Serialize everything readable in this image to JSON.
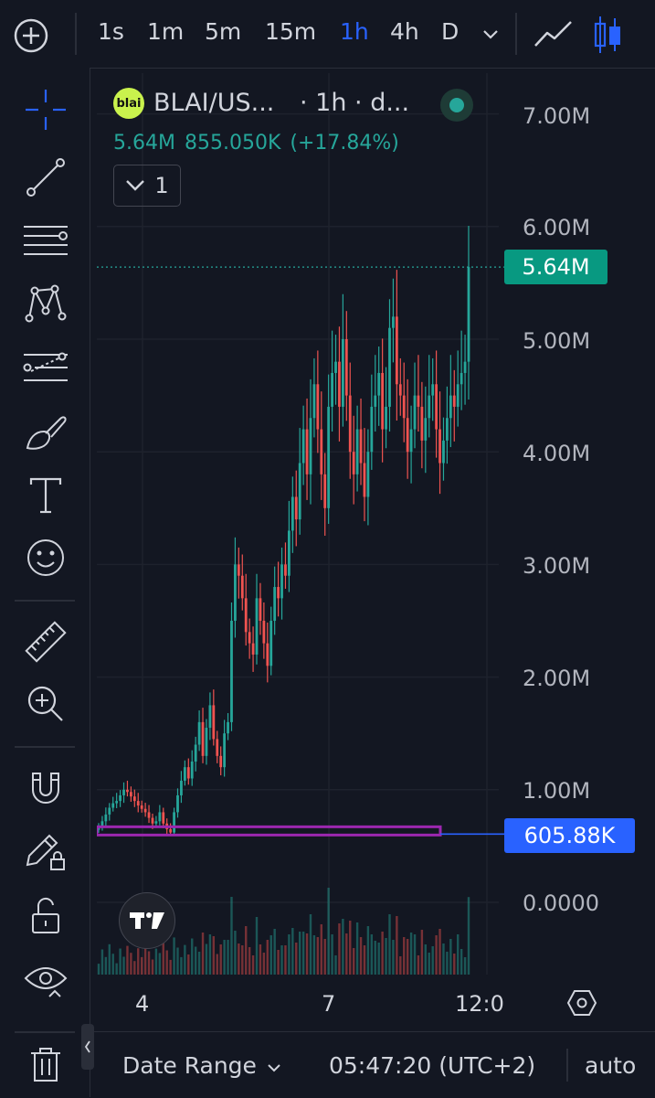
{
  "toolbar": {
    "timeframes": [
      "1s",
      "1m",
      "5m",
      "15m",
      "1h",
      "4h",
      "D"
    ],
    "active_timeframe": "1h"
  },
  "legend": {
    "logo_text": "blai",
    "title": "BLAI/US...",
    "interval": "· 1h · d...",
    "last_price": "5.64M",
    "change": "855.050K",
    "change_pct": "(+17.84%)",
    "collapsed_count": "1"
  },
  "price_axis": {
    "labels": [
      "7.00M",
      "6.00M",
      "5.00M",
      "4.00M",
      "3.00M",
      "2.00M",
      "1.00M",
      "0.0000"
    ],
    "last_price_tag": "5.64M",
    "line_price_tag": "605.88K"
  },
  "time_axis": {
    "labels": [
      "4",
      "7",
      "12:0"
    ]
  },
  "bottom_bar": {
    "date_range": "Date Range",
    "clock": "05:47:20 (UTC+2)",
    "scale_mode": "auto"
  },
  "colors": {
    "up": "#26a69a",
    "down": "#ef5350",
    "accent": "#2962ff",
    "rectangle": "#9c27b0"
  },
  "chart_data": {
    "type": "candlestick",
    "symbol": "BLAI/US...",
    "interval": "1h",
    "ylim": [
      0,
      7000000
    ],
    "y_ticks": [
      0,
      1000000,
      2000000,
      3000000,
      4000000,
      5000000,
      6000000,
      7000000
    ],
    "x_tick_labels": [
      "4",
      "7",
      "12:0"
    ],
    "closes": [
      0.67,
      0.72,
      0.78,
      0.84,
      0.88,
      0.9,
      0.95,
      1.0,
      0.98,
      0.94,
      0.9,
      0.86,
      0.83,
      0.8,
      0.75,
      0.7,
      0.72,
      0.8,
      0.7,
      0.65,
      0.62,
      0.8,
      0.95,
      1.08,
      1.2,
      1.1,
      1.25,
      1.4,
      1.6,
      1.3,
      1.55,
      1.75,
      1.45,
      1.3,
      1.2,
      1.5,
      1.6,
      2.5,
      3.0,
      2.9,
      2.7,
      2.4,
      2.3,
      2.2,
      2.7,
      2.5,
      2.3,
      2.1,
      2.5,
      2.8,
      2.7,
      3.0,
      2.9,
      3.3,
      3.6,
      3.4,
      3.9,
      4.2,
      3.8,
      4.3,
      4.6,
      4.2,
      3.8,
      3.5,
      4.4,
      4.7,
      4.8,
      4.4,
      5.0,
      4.5,
      4.0,
      3.8,
      4.2,
      3.9,
      3.6,
      4.0,
      4.4,
      4.5,
      4.7,
      4.2,
      4.4,
      5.1,
      5.2,
      4.6,
      4.5,
      4.3,
      4.0,
      4.2,
      4.5,
      4.4,
      4.1,
      4.3,
      4.5,
      4.6,
      4.2,
      3.9,
      4.1,
      4.3,
      4.5,
      4.4,
      4.6,
      4.7,
      4.8,
      5.64
    ],
    "last_close": 5640000,
    "horizontal_line": 605880
  }
}
